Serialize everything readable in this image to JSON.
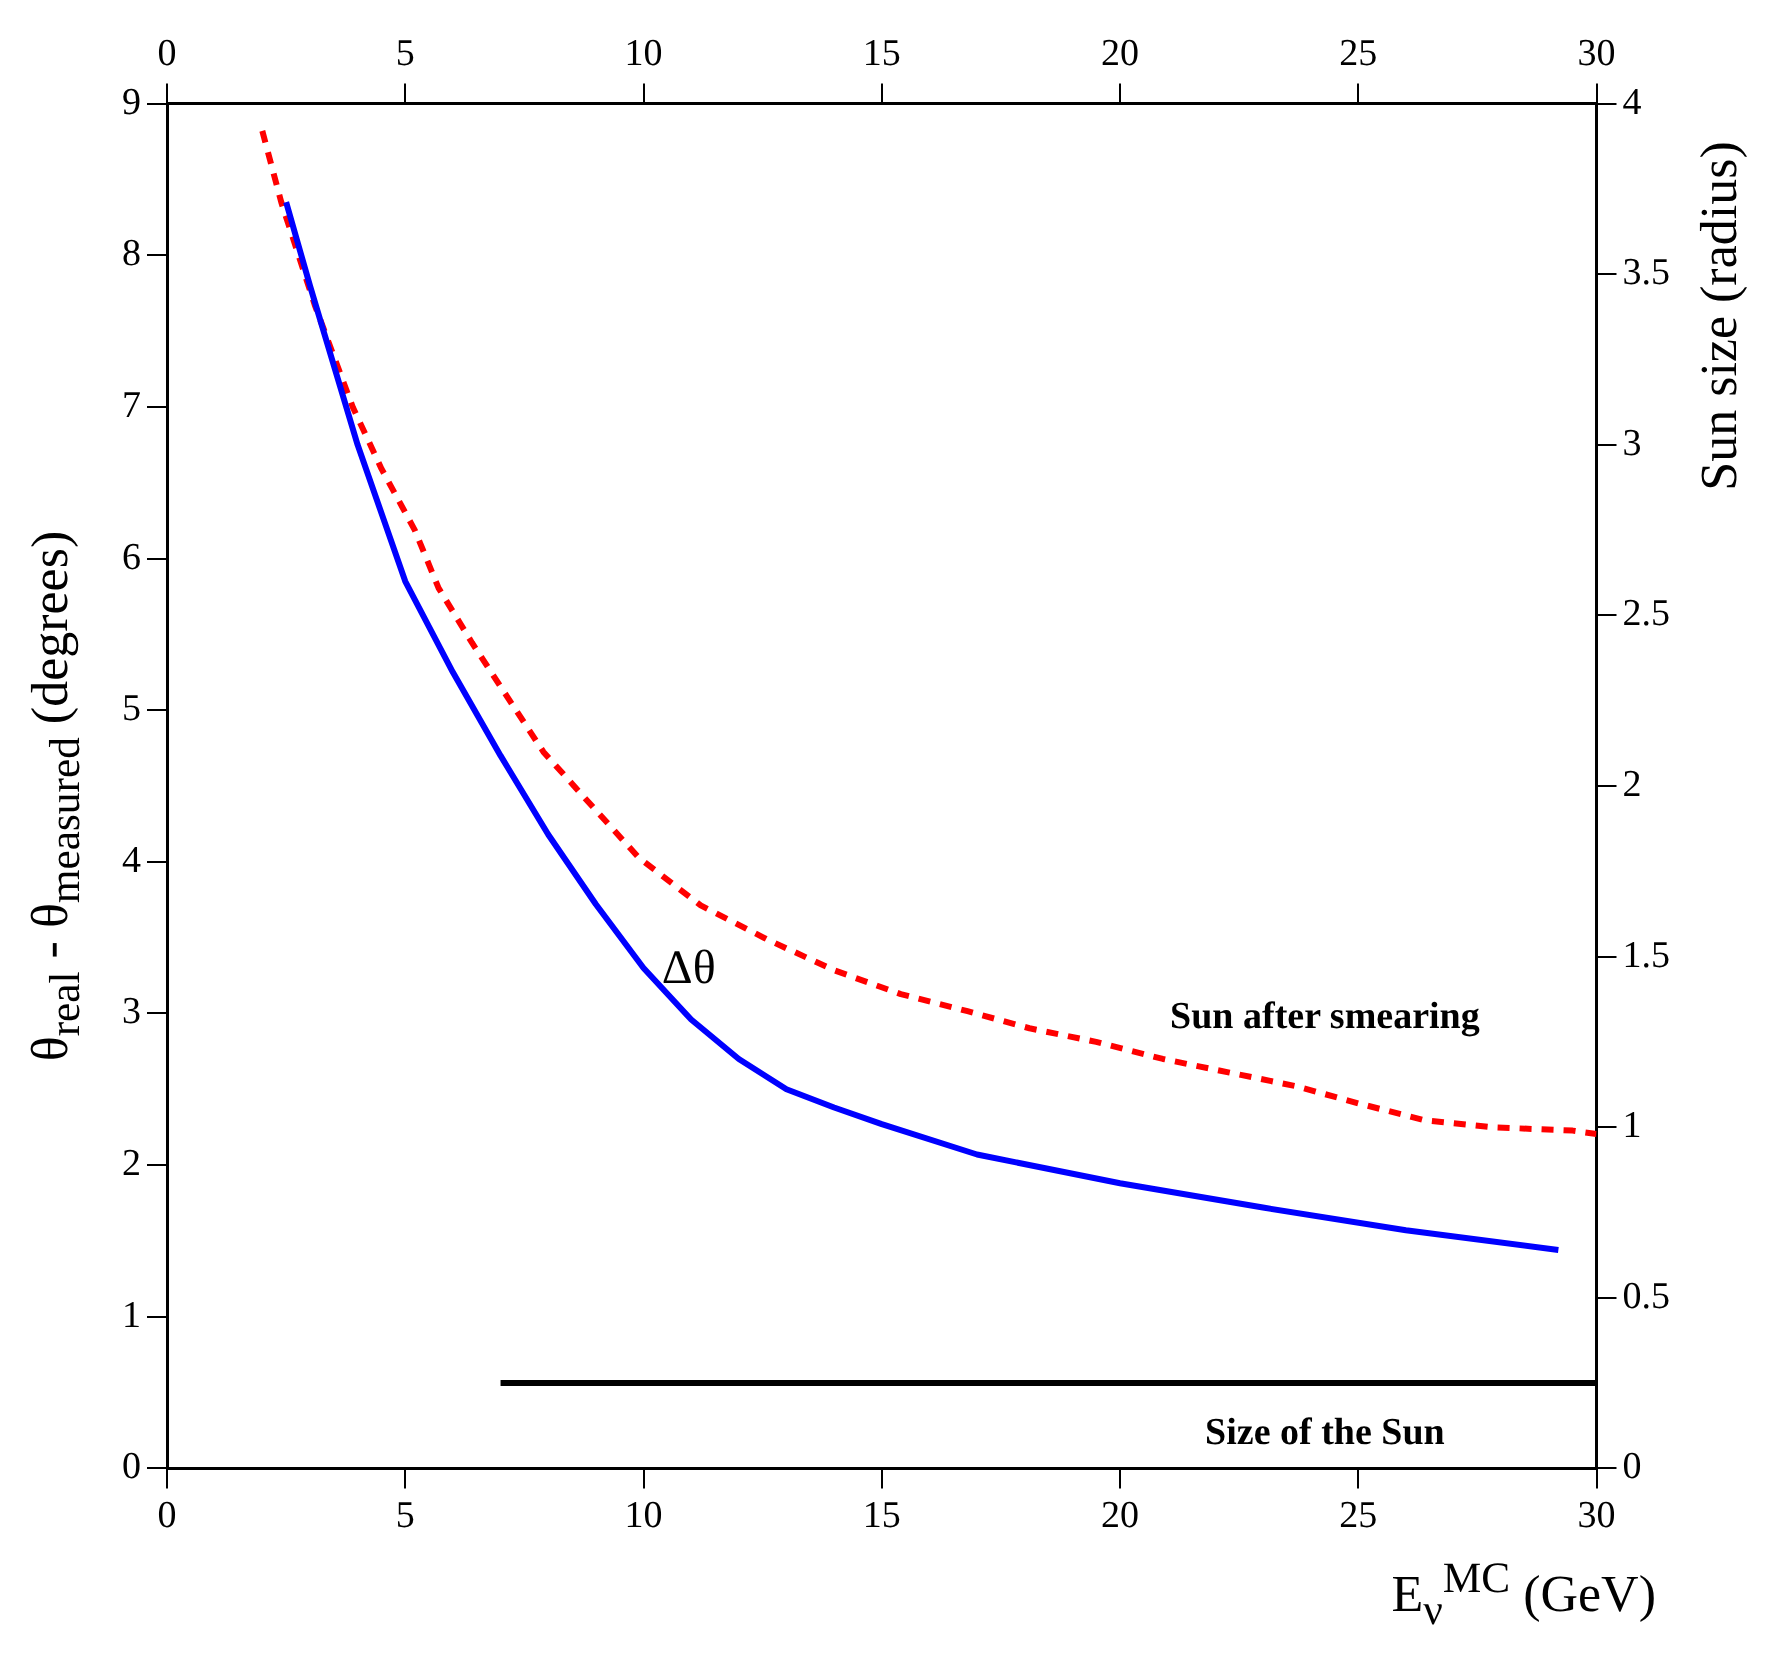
{
  "chart_data": {
    "type": "line",
    "xlabel": "E$_{ν}$$^{MC}$ (GeV)",
    "ylabel": "θ$_{real}$ - θ$_{measured}$ (degrees)",
    "y2label": "Sun size (radius)",
    "xlim": [
      0,
      30
    ],
    "xticks": [
      0,
      5,
      10,
      15,
      20,
      25,
      30
    ],
    "x2lim": [
      0,
      30
    ],
    "x2ticks": [
      0,
      5,
      10,
      15,
      20,
      25,
      30
    ],
    "ylim": [
      0,
      9
    ],
    "yticks": [
      0,
      1,
      2,
      3,
      4,
      5,
      6,
      7,
      8,
      9
    ],
    "y2lim": [
      0,
      4
    ],
    "y2ticks": [
      0,
      0.5,
      1,
      1.5,
      2,
      2.5,
      3,
      3.5,
      4
    ],
    "grid": false,
    "legend": false,
    "marker": "none",
    "series": [
      {
        "name": "Δθ",
        "color": "#0000ff",
        "line_style": "solid",
        "axis": "y",
        "x": [
          2.5,
          3,
          4,
          5,
          6,
          7,
          8,
          9,
          10,
          11,
          12,
          13,
          14,
          15,
          17,
          20,
          23,
          26,
          29.2
        ],
        "values": [
          8.35,
          7.8,
          6.75,
          5.85,
          5.25,
          4.7,
          4.18,
          3.72,
          3.3,
          2.96,
          2.7,
          2.5,
          2.38,
          2.27,
          2.07,
          1.88,
          1.72,
          1.57,
          1.44
        ]
      },
      {
        "name": "Sun after smearing",
        "color": "#ff0000",
        "line_style": "dashed",
        "axis": "y2",
        "x": [
          2.0,
          2.4,
          3.1,
          3.5,
          3.9,
          4.5,
          5.2,
          5.7,
          6.4,
          7.1,
          7.9,
          8.8,
          9.9,
          11.2,
          12.6,
          14.0,
          15.4,
          16.8,
          18.1,
          19.5,
          20.9,
          22.3,
          23.7,
          25.0,
          26.4,
          27.8,
          29.5,
          30
        ],
        "values": [
          3.92,
          3.71,
          3.41,
          3.26,
          3.11,
          2.93,
          2.75,
          2.58,
          2.42,
          2.27,
          2.1,
          1.96,
          1.79,
          1.65,
          1.55,
          1.46,
          1.39,
          1.34,
          1.29,
          1.25,
          1.2,
          1.16,
          1.12,
          1.07,
          1.02,
          1.0,
          0.99,
          0.98
        ]
      },
      {
        "name": "Size of the Sun",
        "color": "#000000",
        "line_style": "solid",
        "axis": "y2",
        "x": [
          7,
          30
        ],
        "values": [
          0.25,
          0.25
        ]
      }
    ]
  }
}
